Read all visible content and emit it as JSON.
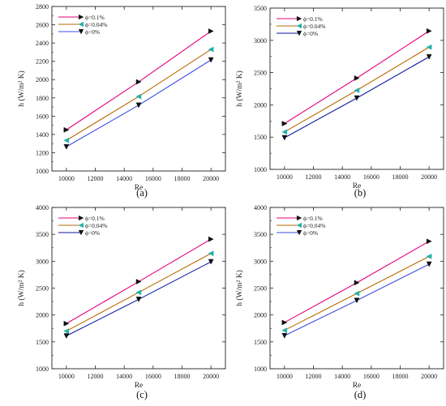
{
  "chart_data": [
    {
      "type": "line",
      "panel_label": "(a)",
      "xlabel": "Re",
      "ylabel": "h (W/m² K)",
      "x": [
        10000,
        15000,
        20000
      ],
      "xlim": [
        9000,
        21000
      ],
      "ylim": [
        1000,
        2800
      ],
      "xticks": [
        10000,
        12000,
        14000,
        16000,
        18000,
        20000
      ],
      "yticks": [
        1000,
        1200,
        1400,
        1600,
        1800,
        2000,
        2200,
        2400,
        2600,
        2800
      ],
      "legend_position": "top-left",
      "grid": false,
      "series": [
        {
          "name": "ϕ=0.1%",
          "values": [
            1450,
            1975,
            2530
          ],
          "color": "#e6007e",
          "marker": "triangle-right",
          "marker_color": "#111111"
        },
        {
          "name": "ϕ=0.04%",
          "values": [
            1335,
            1815,
            2330
          ],
          "color": "#b86a00",
          "marker": "triangle-left",
          "marker_color": "#20b2aa"
        },
        {
          "name": "ϕ=0%",
          "values": [
            1265,
            1720,
            2215
          ],
          "color": "#3b4fe0",
          "marker": "triangle-down",
          "marker_color": "#111111"
        }
      ]
    },
    {
      "type": "line",
      "panel_label": "(b)",
      "xlabel": "Re",
      "ylabel": "h (W/m² K)",
      "x": [
        10000,
        15000,
        20000
      ],
      "xlim": [
        9000,
        21000
      ],
      "ylim": [
        1000,
        3500
      ],
      "xticks": [
        10000,
        12000,
        14000,
        16000,
        18000,
        20000
      ],
      "yticks": [
        1000,
        1500,
        2000,
        2500,
        3000,
        3500
      ],
      "legend_position": "top-left",
      "grid": false,
      "series": [
        {
          "name": "ϕ=0.1%",
          "values": [
            1710,
            2415,
            3145
          ],
          "color": "#e6007e",
          "marker": "triangle-right",
          "marker_color": "#111111"
        },
        {
          "name": "ϕ=0.04%",
          "values": [
            1580,
            2225,
            2895
          ],
          "color": "#b86a00",
          "marker": "triangle-left",
          "marker_color": "#20b2aa"
        },
        {
          "name": "ϕ=0%",
          "values": [
            1490,
            2105,
            2745
          ],
          "color": "#0b1a9e",
          "marker": "triangle-down",
          "marker_color": "#111111"
        }
      ]
    },
    {
      "type": "line",
      "panel_label": "(c)",
      "xlabel": "Re",
      "ylabel": "h (W/m² K)",
      "x": [
        10000,
        15000,
        20000
      ],
      "xlim": [
        9000,
        21000
      ],
      "ylim": [
        1000,
        4000
      ],
      "xticks": [
        10000,
        12000,
        14000,
        16000,
        18000,
        20000
      ],
      "yticks": [
        1000,
        1500,
        2000,
        2500,
        3000,
        3500,
        4000
      ],
      "legend_position": "top-left",
      "grid": false,
      "series": [
        {
          "name": "ϕ=0.1%",
          "values": [
            1840,
            2620,
            3410
          ],
          "color": "#e6007e",
          "marker": "triangle-right",
          "marker_color": "#111111"
        },
        {
          "name": "ϕ=0.04%",
          "values": [
            1700,
            2420,
            3145
          ],
          "color": "#b86a00",
          "marker": "triangle-left",
          "marker_color": "#20b2aa"
        },
        {
          "name": "ϕ=0%",
          "values": [
            1610,
            2290,
            2990
          ],
          "color": "#0b1a9e",
          "marker": "triangle-down",
          "marker_color": "#111111"
        }
      ]
    },
    {
      "type": "line",
      "panel_label": "(d)",
      "xlabel": "Re",
      "ylabel": "h (W/m² K)",
      "x": [
        10000,
        15000,
        20000
      ],
      "xlim": [
        9000,
        21000
      ],
      "ylim": [
        1000,
        4000
      ],
      "xticks": [
        10000,
        12000,
        14000,
        16000,
        18000,
        20000
      ],
      "yticks": [
        1000,
        1500,
        2000,
        2500,
        3000,
        3500,
        4000
      ],
      "legend_position": "top-left",
      "grid": false,
      "series": [
        {
          "name": "ϕ=0.1%",
          "values": [
            1860,
            2600,
            3370
          ],
          "color": "#e6007e",
          "marker": "triangle-right",
          "marker_color": "#111111"
        },
        {
          "name": "ϕ=0.04%",
          "values": [
            1715,
            2400,
            3090
          ],
          "color": "#b86a00",
          "marker": "triangle-left",
          "marker_color": "#20b2aa"
        },
        {
          "name": "ϕ=0%",
          "values": [
            1615,
            2270,
            2945
          ],
          "color": "#3b4fe0",
          "marker": "triangle-down",
          "marker_color": "#111111"
        }
      ]
    }
  ]
}
